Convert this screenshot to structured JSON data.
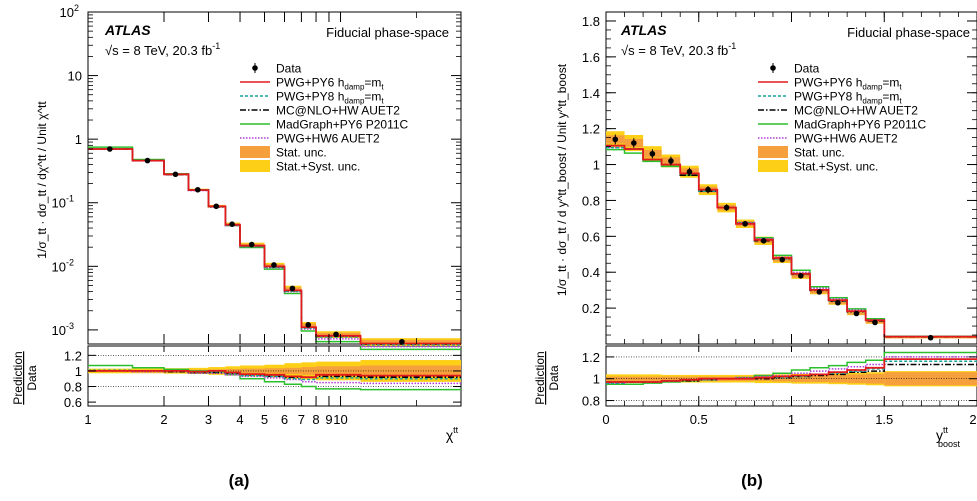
{
  "panels": [
    {
      "caption": "(a)",
      "atlas_label": "ATLAS",
      "energy_text": "√s = 8 TeV, 20.3 fb",
      "energy_sup": "-1",
      "phase_space": "Fiducial phase-space",
      "ylabel_main": "1/σ_tt · dσ_tt / dχ^tt / Unit χ^tt",
      "ylabel_ratio_top": "Prediction",
      "ylabel_ratio_bottom": "Data",
      "xlabel": "χ",
      "xlabel_sup": "tt",
      "main_y_ticks": [
        {
          "v": 0.001,
          "base": "10",
          "exp": "-3"
        },
        {
          "v": 0.01,
          "base": "10",
          "exp": "-2"
        },
        {
          "v": 0.1,
          "base": "10",
          "exp": "-1"
        },
        {
          "v": 1,
          "base": "1",
          "exp": ""
        },
        {
          "v": 10,
          "base": "10",
          "exp": ""
        },
        {
          "v": 100,
          "base": "10",
          "exp": "2"
        }
      ],
      "ratio_y_ticks": [
        "0.6",
        "0.8",
        "1",
        "1.2"
      ],
      "x_ticks": [
        {
          "v": 1,
          "label": "1"
        },
        {
          "v": 2,
          "label": "2"
        },
        {
          "v": 3,
          "label": "3"
        },
        {
          "v": 4,
          "label": "4"
        },
        {
          "v": 5,
          "label": "5"
        },
        {
          "v": 6,
          "label": "6"
        },
        {
          "v": 7,
          "label": "7"
        },
        {
          "v": 8,
          "label": "8"
        },
        {
          "v": 9,
          "label": "9"
        },
        {
          "v": 10,
          "label": "10"
        }
      ]
    },
    {
      "caption": "(b)",
      "atlas_label": "ATLAS",
      "energy_text": "√s = 8 TeV, 20.3 fb",
      "energy_sup": "-1",
      "phase_space": "Fiducial phase-space",
      "ylabel_main": "1/σ_tt · dσ_tt / d y^tt_boost / Unit y^tt_boost",
      "ylabel_ratio_top": "Prediction",
      "ylabel_ratio_bottom": "Data",
      "xlabel": "y",
      "xlabel_sup": "tt",
      "xlabel_sub": "boost",
      "main_y_ticks": [
        "0.2",
        "0.4",
        "0.6",
        "0.8",
        "1",
        "1.2",
        "1.4",
        "1.6",
        "1.8"
      ],
      "ratio_y_ticks": [
        "0.8",
        "1",
        "1.2"
      ],
      "x_ticks": [
        "0",
        "0.5",
        "1",
        "1.5",
        "2"
      ]
    }
  ],
  "legend": {
    "entries": [
      {
        "key": "data",
        "label": "Data",
        "kind": "marker"
      },
      {
        "key": "pwg_py6",
        "label": "PWG+PY6 h",
        "sub": "damp",
        "tail": "=m",
        "tail_sub": "t",
        "kind": "line",
        "color": "#e31a1c",
        "dash": ""
      },
      {
        "key": "pwg_py8",
        "label": "PWG+PY8 h",
        "sub": "damp",
        "tail": "=m",
        "tail_sub": "t",
        "kind": "line",
        "color": "#17a398",
        "dash": "3,2"
      },
      {
        "key": "mcnlo_hw",
        "label": "MC@NLO+HW AUET2",
        "kind": "line",
        "color": "#000000",
        "dash": "6,2,1.5,2"
      },
      {
        "key": "madgraph_py6",
        "label": "MadGraph+PY6 P2011C",
        "kind": "line",
        "color": "#2cbf2c",
        "dash": ""
      },
      {
        "key": "pwg_hw6",
        "label": "PWG+HW6 AUET2",
        "kind": "line",
        "color": "#b03bd6",
        "dash": "1.5,1.5"
      },
      {
        "key": "stat_unc",
        "label": "Stat. unc.",
        "kind": "box",
        "color": "#f5a03c"
      },
      {
        "key": "stat_syst_unc",
        "label": "Stat.+Syst. unc.",
        "kind": "box",
        "color": "#fdd017"
      }
    ]
  },
  "chart_data": [
    {
      "type": "line",
      "title": "",
      "xlabel": "χ^tt",
      "ylabel": "1/σ_tt · dσ_tt / dχ^tt / Unit χ^tt",
      "xscale": "log",
      "yscale": "log",
      "xlim": [
        1,
        30
      ],
      "ylim": [
        0.0006,
        100
      ],
      "ratio_ylim": [
        0.55,
        1.32
      ],
      "bin_edges": [
        1,
        1.5,
        2,
        2.5,
        3,
        3.5,
        4,
        5,
        6,
        7,
        8,
        12,
        30
      ],
      "data": {
        "x": [
          1.22,
          1.72,
          2.22,
          2.72,
          3.22,
          3.72,
          4.45,
          5.45,
          6.45,
          7.45,
          9.6,
          17.5
        ],
        "y": [
          0.7,
          0.46,
          0.28,
          0.16,
          0.088,
          0.046,
          0.022,
          0.0105,
          0.0045,
          0.0012,
          0.00085,
          0.00065
        ]
      },
      "stat_unc_rel": [
        0.01,
        0.01,
        0.01,
        0.015,
        0.02,
        0.025,
        0.03,
        0.035,
        0.04,
        0.05,
        0.06,
        0.07
      ],
      "stat_syst_unc_rel": [
        0.03,
        0.03,
        0.035,
        0.04,
        0.05,
        0.06,
        0.07,
        0.08,
        0.1,
        0.11,
        0.12,
        0.14
      ],
      "series": [
        {
          "key": "pwg_py6",
          "name": "PWG+PY6 h_damp=m_t",
          "ratio": [
            1.0,
            1.0,
            1.0,
            0.99,
            1.0,
            0.98,
            0.96,
            0.95,
            0.93,
            0.92,
            0.95,
            0.94
          ]
        },
        {
          "key": "pwg_py8",
          "name": "PWG+PY8 h_damp=m_t",
          "ratio": [
            1.01,
            1.0,
            1.0,
            0.98,
            0.99,
            0.97,
            0.94,
            0.93,
            0.9,
            0.89,
            0.91,
            0.9
          ]
        },
        {
          "key": "mcnlo_hw",
          "name": "MC@NLO+HW AUET2",
          "ratio": [
            1.0,
            1.0,
            0.99,
            0.98,
            0.98,
            0.97,
            0.95,
            0.93,
            0.92,
            0.92,
            0.93,
            0.92
          ]
        },
        {
          "key": "madgraph_py6",
          "name": "MadGraph+PY6 P2011C",
          "ratio": [
            1.07,
            1.04,
            1.02,
            1.0,
            0.99,
            0.95,
            0.9,
            0.86,
            0.83,
            0.8,
            0.77,
            0.76
          ]
        },
        {
          "key": "pwg_hw6",
          "name": "PWG+HW6 AUET2",
          "ratio": [
            1.0,
            0.99,
            0.99,
            0.97,
            0.97,
            0.95,
            0.93,
            0.91,
            0.89,
            0.86,
            0.85,
            0.84
          ]
        }
      ]
    },
    {
      "type": "line",
      "title": "",
      "xlabel": "y^tt_boost",
      "ylabel": "1/σ_tt · dσ_tt / d y^tt_boost / Unit y^tt_boost",
      "xlim": [
        0,
        2
      ],
      "ylim": [
        0,
        1.85
      ],
      "ratio_ylim": [
        0.75,
        1.3
      ],
      "bin_edges": [
        0,
        0.1,
        0.2,
        0.3,
        0.4,
        0.5,
        0.6,
        0.7,
        0.8,
        0.9,
        1.0,
        1.1,
        1.2,
        1.3,
        1.4,
        1.5,
        2.0
      ],
      "data": {
        "x": [
          0.05,
          0.15,
          0.25,
          0.35,
          0.45,
          0.55,
          0.65,
          0.75,
          0.85,
          0.95,
          1.05,
          1.15,
          1.25,
          1.35,
          1.45,
          1.75
        ],
        "y": [
          1.14,
          1.12,
          1.06,
          1.02,
          0.96,
          0.86,
          0.76,
          0.67,
          0.575,
          0.47,
          0.38,
          0.29,
          0.23,
          0.17,
          0.12,
          0.035
        ]
      },
      "stat_unc_rel": [
        0.02,
        0.02,
        0.02,
        0.02,
        0.02,
        0.02,
        0.02,
        0.02,
        0.02,
        0.025,
        0.03,
        0.03,
        0.035,
        0.04,
        0.045,
        0.06
      ],
      "stat_syst_unc_rel": [
        0.04,
        0.04,
        0.04,
        0.035,
        0.035,
        0.035,
        0.035,
        0.035,
        0.04,
        0.04,
        0.045,
        0.045,
        0.05,
        0.055,
        0.06,
        0.07
      ],
      "series": [
        {
          "key": "pwg_py6",
          "name": "PWG+PY6 h_damp=m_t",
          "ratio": [
            0.97,
            0.97,
            0.97,
            0.98,
            0.99,
            1.0,
            1.0,
            1.0,
            1.01,
            1.02,
            1.03,
            1.04,
            1.06,
            1.08,
            1.1,
            1.18
          ]
        },
        {
          "key": "pwg_py8",
          "name": "PWG+PY8 h_damp=m_t",
          "ratio": [
            0.96,
            0.97,
            0.97,
            0.98,
            0.99,
            0.99,
            1.0,
            1.0,
            1.01,
            1.01,
            1.02,
            1.04,
            1.05,
            1.07,
            1.09,
            1.16
          ]
        },
        {
          "key": "mcnlo_hw",
          "name": "MC@NLO+HW AUET2",
          "ratio": [
            0.97,
            0.97,
            0.97,
            0.98,
            0.98,
            0.99,
            1.0,
            1.0,
            1.0,
            1.01,
            1.02,
            1.03,
            1.04,
            1.06,
            1.07,
            1.13
          ]
        },
        {
          "key": "madgraph_py6",
          "name": "MadGraph+PY6 P2011C",
          "ratio": [
            0.95,
            0.95,
            0.96,
            0.97,
            0.98,
            0.99,
            1.0,
            1.01,
            1.03,
            1.05,
            1.08,
            1.1,
            1.12,
            1.15,
            1.17,
            1.24
          ]
        },
        {
          "key": "pwg_hw6",
          "name": "PWG+HW6 AUET2",
          "ratio": [
            0.96,
            0.97,
            0.97,
            0.98,
            0.99,
            0.99,
            1.0,
            1.01,
            1.02,
            1.03,
            1.05,
            1.07,
            1.09,
            1.11,
            1.13,
            1.2
          ]
        }
      ]
    }
  ]
}
